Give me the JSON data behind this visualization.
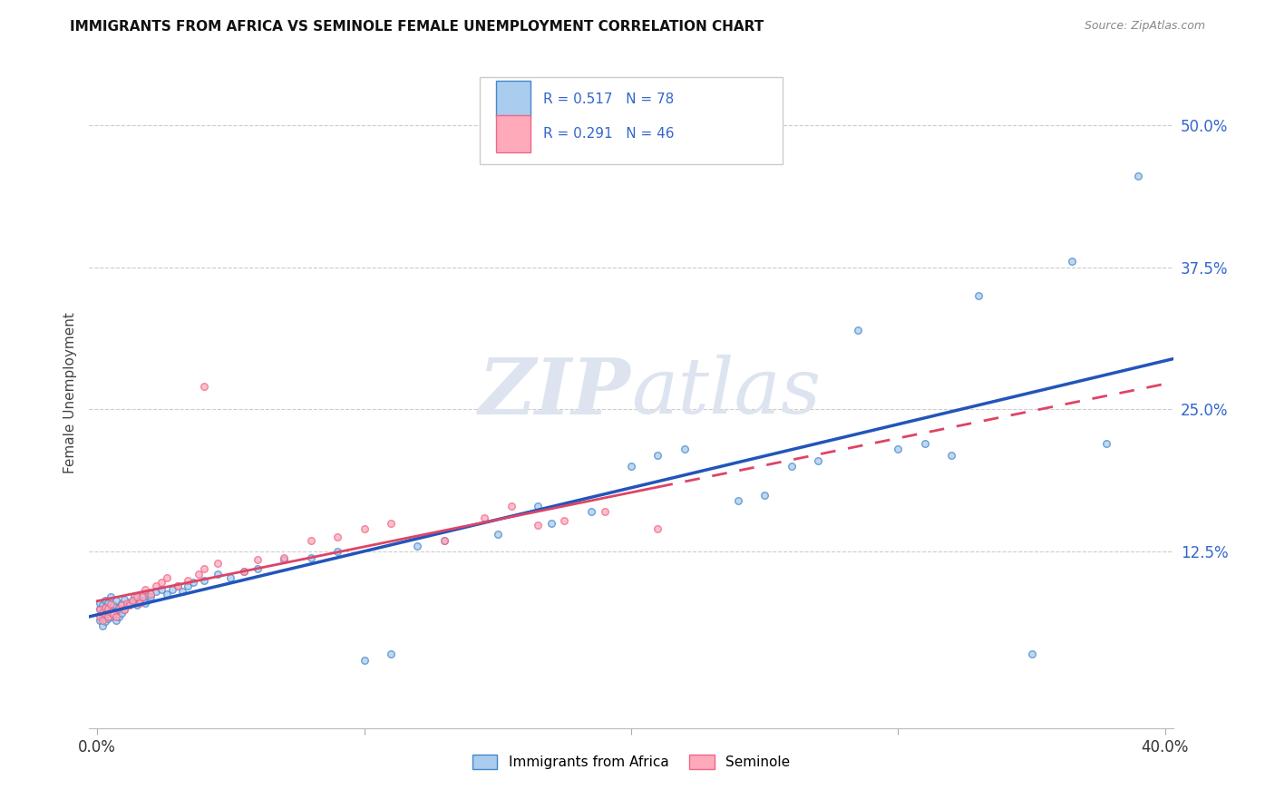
{
  "title": "IMMIGRANTS FROM AFRICA VS SEMINOLE FEMALE UNEMPLOYMENT CORRELATION CHART",
  "source": "Source: ZipAtlas.com",
  "ylabel": "Female Unemployment",
  "ytick_vals": [
    0.125,
    0.25,
    0.375,
    0.5
  ],
  "ytick_labels": [
    "12.5%",
    "25.0%",
    "37.5%",
    "50.0%"
  ],
  "xlim": [
    -0.003,
    0.403
  ],
  "ylim": [
    -0.03,
    0.56
  ],
  "legend1_r": "0.517",
  "legend1_n": "78",
  "legend2_r": "0.291",
  "legend2_n": "46",
  "color_blue_fill": "#AACCEE",
  "color_blue_edge": "#4488CC",
  "color_pink_fill": "#FFAABB",
  "color_pink_edge": "#EE6688",
  "color_blue_line": "#2255BB",
  "color_pink_line": "#DD4466",
  "grid_color": "#CCCCCC",
  "watermark_color": "#DDE4F0",
  "xtick_labels": [
    "0.0%",
    "",
    "",
    "",
    "40.0%"
  ],
  "xtick_vals": [
    0.0,
    0.1,
    0.2,
    0.3,
    0.4
  ],
  "marker_size": 30,
  "blue_x": [
    0.001,
    0.001,
    0.001,
    0.002,
    0.002,
    0.002,
    0.002,
    0.003,
    0.003,
    0.003,
    0.003,
    0.004,
    0.004,
    0.004,
    0.005,
    0.005,
    0.005,
    0.006,
    0.006,
    0.007,
    0.007,
    0.007,
    0.008,
    0.008,
    0.009,
    0.009,
    0.01,
    0.01,
    0.011,
    0.012,
    0.013,
    0.014,
    0.015,
    0.016,
    0.017,
    0.018,
    0.019,
    0.02,
    0.022,
    0.024,
    0.026,
    0.028,
    0.03,
    0.032,
    0.034,
    0.036,
    0.04,
    0.045,
    0.05,
    0.055,
    0.06,
    0.07,
    0.08,
    0.09,
    0.1,
    0.11,
    0.12,
    0.13,
    0.15,
    0.165,
    0.17,
    0.185,
    0.2,
    0.21,
    0.22,
    0.24,
    0.25,
    0.26,
    0.27,
    0.285,
    0.3,
    0.31,
    0.32,
    0.33,
    0.35,
    0.365,
    0.378,
    0.39
  ],
  "blue_y": [
    0.065,
    0.075,
    0.08,
    0.06,
    0.068,
    0.072,
    0.078,
    0.064,
    0.07,
    0.076,
    0.082,
    0.066,
    0.074,
    0.08,
    0.068,
    0.075,
    0.085,
    0.07,
    0.078,
    0.065,
    0.073,
    0.082,
    0.068,
    0.076,
    0.071,
    0.079,
    0.074,
    0.083,
    0.078,
    0.08,
    0.082,
    0.085,
    0.078,
    0.082,
    0.088,
    0.08,
    0.086,
    0.085,
    0.09,
    0.092,
    0.088,
    0.092,
    0.095,
    0.09,
    0.095,
    0.098,
    0.1,
    0.105,
    0.102,
    0.108,
    0.11,
    0.118,
    0.12,
    0.125,
    0.03,
    0.035,
    0.13,
    0.135,
    0.14,
    0.165,
    0.15,
    0.16,
    0.2,
    0.21,
    0.215,
    0.17,
    0.175,
    0.2,
    0.205,
    0.32,
    0.215,
    0.22,
    0.21,
    0.35,
    0.035,
    0.38,
    0.22,
    0.455
  ],
  "pink_x": [
    0.001,
    0.001,
    0.002,
    0.002,
    0.003,
    0.003,
    0.004,
    0.004,
    0.005,
    0.005,
    0.006,
    0.007,
    0.008,
    0.009,
    0.01,
    0.011,
    0.012,
    0.013,
    0.015,
    0.016,
    0.017,
    0.018,
    0.02,
    0.022,
    0.024,
    0.026,
    0.03,
    0.034,
    0.038,
    0.04,
    0.045,
    0.055,
    0.06,
    0.07,
    0.08,
    0.09,
    0.1,
    0.11,
    0.13,
    0.145,
    0.155,
    0.165,
    0.175,
    0.19,
    0.21,
    0.04
  ],
  "pink_y": [
    0.068,
    0.074,
    0.065,
    0.072,
    0.07,
    0.076,
    0.068,
    0.075,
    0.072,
    0.079,
    0.07,
    0.068,
    0.075,
    0.078,
    0.074,
    0.08,
    0.078,
    0.082,
    0.085,
    0.08,
    0.085,
    0.092,
    0.088,
    0.095,
    0.098,
    0.102,
    0.095,
    0.1,
    0.105,
    0.11,
    0.115,
    0.108,
    0.118,
    0.12,
    0.135,
    0.138,
    0.145,
    0.15,
    0.135,
    0.155,
    0.165,
    0.148,
    0.152,
    0.16,
    0.145,
    0.27
  ]
}
